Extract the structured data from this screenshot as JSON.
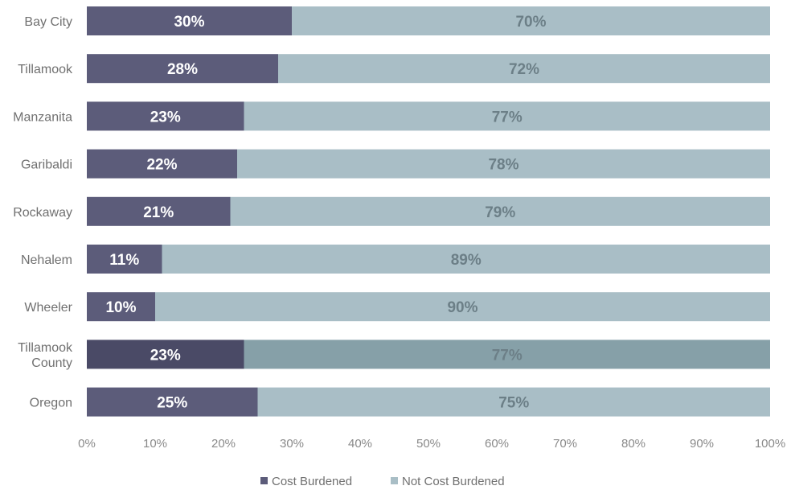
{
  "chart_data": {
    "type": "bar",
    "orientation": "horizontal",
    "stacked": true,
    "title": "",
    "xlabel": "",
    "ylabel": "",
    "xlim": [
      0,
      100
    ],
    "x_ticks": [
      "0%",
      "10%",
      "20%",
      "30%",
      "40%",
      "50%",
      "60%",
      "70%",
      "80%",
      "90%",
      "100%"
    ],
    "x_tick_values": [
      0,
      10,
      20,
      30,
      40,
      50,
      60,
      70,
      80,
      90,
      100
    ],
    "grid": false,
    "legend_position": "bottom",
    "categories": [
      "Bay City",
      "Tillamook",
      "Manzanita",
      "Garibaldi",
      "Rockaway",
      "Nehalem",
      "Wheeler",
      "Tillamook County",
      "Oregon"
    ],
    "category_labels": [
      [
        "Bay City"
      ],
      [
        "Tillamook"
      ],
      [
        "Manzanita"
      ],
      [
        "Garibaldi"
      ],
      [
        "Rockaway"
      ],
      [
        "Nehalem"
      ],
      [
        "Wheeler"
      ],
      [
        "Tillamook",
        "County"
      ],
      [
        "Oregon"
      ]
    ],
    "highlight_category": "Tillamook County",
    "series": [
      {
        "name": "Cost Burdened",
        "color": "#5c5c7a",
        "highlight_color": "#4a4a66",
        "label_color": "#ffffff",
        "values": [
          30,
          28,
          23,
          22,
          21,
          11,
          10,
          23,
          25
        ],
        "labels": [
          "30%",
          "28%",
          "23%",
          "22%",
          "21%",
          "11%",
          "10%",
          "23%",
          "25%"
        ]
      },
      {
        "name": "Not Cost Burdened",
        "color": "#a9bec6",
        "highlight_color": "#86a0a8",
        "label_color": "#6c7f87",
        "values": [
          70,
          72,
          77,
          78,
          79,
          89,
          90,
          77,
          75
        ],
        "labels": [
          "70%",
          "72%",
          "77%",
          "78%",
          "79%",
          "89%",
          "90%",
          "77%",
          "75%"
        ]
      }
    ]
  }
}
